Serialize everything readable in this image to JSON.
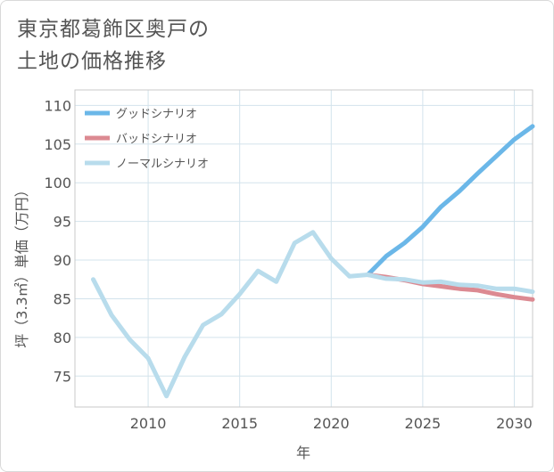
{
  "title_lines": [
    "東京都葛飾区奥戸の",
    "土地の価格推移"
  ],
  "chart_data": {
    "type": "line",
    "xlabel": "年",
    "ylabel": "坪（3.3㎡）単価（万円）",
    "xlim": [
      2006,
      2031
    ],
    "ylim": [
      71,
      112
    ],
    "xticks": [
      2010,
      2015,
      2020,
      2025,
      2030
    ],
    "yticks": [
      75,
      80,
      85,
      90,
      95,
      100,
      105,
      110
    ],
    "grid": true,
    "legend_position": "top-left",
    "series": [
      {
        "name": "グッドシナリオ",
        "color": "#6bb7e8",
        "x": [
          2022,
          2023,
          2024,
          2025,
          2026,
          2027,
          2028,
          2029,
          2030,
          2031
        ],
        "values": [
          88.1,
          90.5,
          92.2,
          94.3,
          96.9,
          98.9,
          101.2,
          103.4,
          105.6,
          107.3
        ]
      },
      {
        "name": "バッドシナリオ",
        "color": "#dc8a92",
        "x": [
          2022,
          2023,
          2024,
          2025,
          2026,
          2027,
          2028,
          2029,
          2030,
          2031
        ],
        "values": [
          88.1,
          87.8,
          87.4,
          86.9,
          86.6,
          86.3,
          86.1,
          85.6,
          85.2,
          84.9
        ]
      },
      {
        "name": "ノーマルシナリオ",
        "color": "#b8dcec",
        "x": [
          2007,
          2008,
          2009,
          2010,
          2011,
          2012,
          2013,
          2014,
          2015,
          2016,
          2017,
          2018,
          2019,
          2020,
          2021,
          2022,
          2023,
          2024,
          2025,
          2026,
          2027,
          2028,
          2029,
          2030,
          2031
        ],
        "values": [
          87.5,
          82.9,
          79.7,
          77.3,
          72.4,
          77.5,
          81.6,
          83.0,
          85.6,
          88.6,
          87.2,
          92.2,
          93.6,
          90.2,
          87.9,
          88.1,
          87.6,
          87.5,
          87.1,
          87.2,
          86.8,
          86.7,
          86.3,
          86.3,
          85.9
        ]
      }
    ]
  }
}
